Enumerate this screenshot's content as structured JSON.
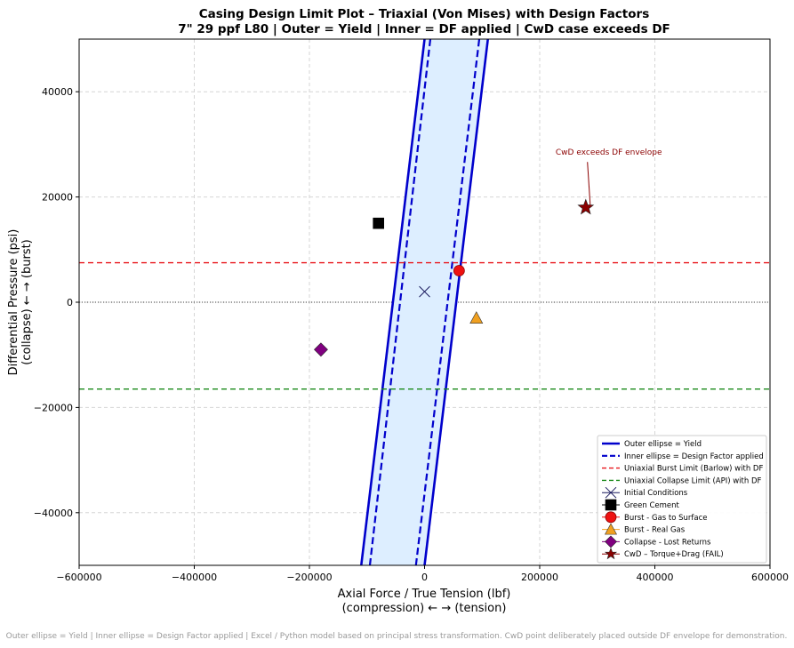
{
  "chart_data": {
    "type": "scatter",
    "title_line1": "Casing Design Limit Plot – Triaxial (Von Mises) with Design Factors",
    "title_line2": "7\" 29 ppf L80  |  Outer = Yield  |  Inner = DF applied  |  CwD case exceeds DF",
    "xlabel_line1": "Axial Force / True Tension (lbf)",
    "xlabel_line2": "(compression) ←        → (tension)",
    "ylabel_line1": "Differential Pressure (psi)",
    "ylabel_line2": "(collapse) ←        → (burst)",
    "xlim": [
      -600000,
      600000
    ],
    "ylim": [
      -50000,
      50000
    ],
    "xticks": [
      -600000,
      -400000,
      -200000,
      0,
      200000,
      400000,
      600000
    ],
    "yticks": [
      -40000,
      -20000,
      0,
      20000,
      40000
    ],
    "grid": true,
    "legend_position": "lower-right",
    "envelopes": {
      "outer": {
        "name": "Outer ellipse = Yield",
        "color": "#0000cc",
        "style": "solid",
        "left": [
          [
            -110000,
            -50000
          ],
          [
            0,
            50000
          ]
        ],
        "right": [
          [
            0,
            -50000
          ],
          [
            110000,
            50000
          ]
        ]
      },
      "inner": {
        "name": "Inner ellipse = Design Factor applied",
        "color": "#0000cc",
        "style": "dashed",
        "left": [
          [
            -95000,
            -50000
          ],
          [
            10000,
            50000
          ]
        ],
        "right": [
          [
            -15000,
            -50000
          ],
          [
            95000,
            50000
          ]
        ]
      },
      "fill_color": "#ddeeff"
    },
    "limit_lines": [
      {
        "name": "Uniaxial Burst Limit (Barlow) with DF",
        "y": 7500,
        "color": "#e8161c"
      },
      {
        "name": "Uniaxial Collapse Limit (API) with DF",
        "y": -16500,
        "color": "#1a8a1a"
      }
    ],
    "points": [
      {
        "name": "Initial Conditions",
        "x": 0,
        "y": 2000,
        "marker": "x",
        "color": "#1a1a5e"
      },
      {
        "name": "Green Cement",
        "x": -80000,
        "y": 15000,
        "marker": "square",
        "color": "#000000"
      },
      {
        "name": "Burst - Gas to Surface",
        "x": 60000,
        "y": 6000,
        "marker": "circle",
        "color": "#ee1111"
      },
      {
        "name": "Burst - Real Gas",
        "x": 90000,
        "y": -3000,
        "marker": "triangle",
        "color": "#f0a020"
      },
      {
        "name": "Collapse - Lost Returns",
        "x": -180000,
        "y": -9000,
        "marker": "diamond",
        "color": "#800080"
      },
      {
        "name": "CwD – Torque+Drag (FAIL)",
        "x": 280000,
        "y": 18000,
        "marker": "star",
        "color": "#8b0000"
      }
    ],
    "annotation": {
      "text": "CwD exceeds DF envelope",
      "x": 320000,
      "y": 28000,
      "target_x": 280000,
      "target_y": 18000
    },
    "footer": "Outer ellipse = Yield  |  Inner ellipse = Design Factor applied  |  Excel / Python model based on principal stress transformation.  CwD point deliberately placed outside DF envelope for demonstration."
  }
}
